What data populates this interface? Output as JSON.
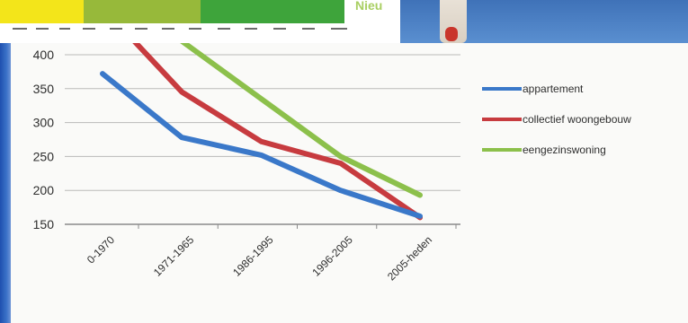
{
  "banner": {
    "partial_text": "Nieu"
  },
  "legend_colors": {
    "appartement": "#3a78c9",
    "collectief woongebouw": "#c73b3f",
    "eengezinswoning": "#8cc04b"
  },
  "chart_data": {
    "type": "line",
    "title": "",
    "xlabel": "",
    "ylabel": "",
    "categories": [
      "0-1970",
      "1971-1965",
      "1986-1995",
      "1996-2005",
      "2005-heden"
    ],
    "ylim": [
      150,
      400
    ],
    "yticks": [
      150,
      200,
      250,
      300,
      350,
      400
    ],
    "grid": true,
    "legend_position": "right",
    "series": [
      {
        "name": "appartement",
        "values": [
          372,
          278,
          252,
          200,
          162
        ]
      },
      {
        "name": "collectief woongebouw",
        "values": [
          470,
          345,
          272,
          240,
          160
        ]
      },
      {
        "name": "eengezinswoning",
        "values": [
          520,
          420,
          335,
          250,
          193
        ]
      }
    ]
  }
}
